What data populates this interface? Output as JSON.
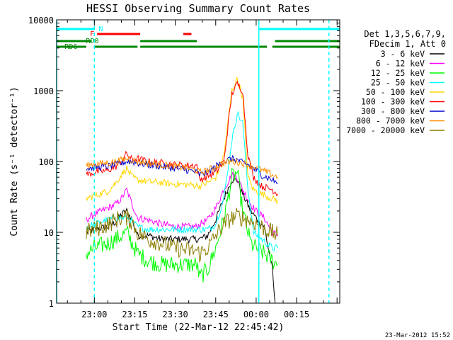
{
  "chart_data": {
    "type": "line",
    "title": "HESSI Observing Summary Count Rates",
    "xlabel": "Start Time (22-Mar-12 22:45:42)",
    "ylabel": "Count Rate (s⁻¹ detector⁻¹)",
    "yscale": "log",
    "ylim": [
      1,
      10000
    ],
    "xlim_minutes": [
      -14,
      91
    ],
    "yticks": [
      {
        "v": 1,
        "label": "1"
      },
      {
        "v": 10,
        "label": "10"
      },
      {
        "v": 100,
        "label": "100"
      },
      {
        "v": 1000,
        "label": "1000"
      },
      {
        "v": 10000,
        "label": "10000"
      }
    ],
    "xticks": [
      {
        "t": 0,
        "label": "23:00"
      },
      {
        "t": 15,
        "label": "23:15"
      },
      {
        "t": 30,
        "label": "23:30"
      },
      {
        "t": 45,
        "label": "23:45"
      },
      {
        "t": 60,
        "label": "00:00"
      },
      {
        "t": 75,
        "label": "00:15"
      }
    ],
    "legend_header": [
      "Det 1,3,5,6,7,9,",
      "FDecim 1, Att 0"
    ],
    "legend_placement": "right",
    "series": [
      {
        "name": "3 - 6 keV",
        "color": "#000000",
        "points": [
          [
            -3,
            10
          ],
          [
            0,
            11
          ],
          [
            5,
            12
          ],
          [
            8,
            14
          ],
          [
            10,
            18
          ],
          [
            12,
            20
          ],
          [
            14,
            15
          ],
          [
            16,
            9
          ],
          [
            20,
            9
          ],
          [
            25,
            8
          ],
          [
            30,
            8
          ],
          [
            35,
            8
          ],
          [
            38,
            8
          ],
          [
            39,
            8
          ],
          [
            42,
            9
          ],
          [
            45,
            15
          ],
          [
            48,
            30
          ],
          [
            51,
            55
          ],
          [
            53,
            55
          ],
          [
            55,
            35
          ],
          [
            58,
            20
          ],
          [
            60,
            16
          ],
          [
            63,
            12
          ],
          [
            66,
            3
          ],
          [
            67,
            1
          ]
        ]
      },
      {
        "name": "6 - 12 keV",
        "color": "#ff00ff",
        "points": [
          [
            -3,
            15
          ],
          [
            0,
            18
          ],
          [
            5,
            22
          ],
          [
            8,
            25
          ],
          [
            10,
            30
          ],
          [
            12,
            40
          ],
          [
            14,
            25
          ],
          [
            16,
            16
          ],
          [
            20,
            15
          ],
          [
            25,
            13
          ],
          [
            30,
            12
          ],
          [
            35,
            12
          ],
          [
            38,
            12
          ],
          [
            39,
            13
          ],
          [
            42,
            15
          ],
          [
            45,
            22
          ],
          [
            48,
            40
          ],
          [
            51,
            65
          ],
          [
            53,
            60
          ],
          [
            55,
            40
          ],
          [
            58,
            25
          ],
          [
            60,
            20
          ],
          [
            63,
            16
          ],
          [
            66,
            10
          ],
          [
            68,
            9
          ]
        ]
      },
      {
        "name": "12 - 25 keV",
        "color": "#00ff00",
        "points": [
          [
            -3,
            5
          ],
          [
            0,
            6
          ],
          [
            5,
            7
          ],
          [
            8,
            8
          ],
          [
            10,
            9
          ],
          [
            12,
            10
          ],
          [
            14,
            7
          ],
          [
            16,
            5
          ],
          [
            20,
            4
          ],
          [
            25,
            3.5
          ],
          [
            30,
            3.5
          ],
          [
            35,
            3.5
          ],
          [
            38,
            3.5
          ],
          [
            39,
            2.3
          ],
          [
            42,
            3
          ],
          [
            45,
            6
          ],
          [
            48,
            15
          ],
          [
            51,
            60
          ],
          [
            53,
            70
          ],
          [
            55,
            20
          ],
          [
            58,
            7
          ],
          [
            60,
            6
          ],
          [
            63,
            5
          ],
          [
            66,
            4
          ],
          [
            68,
            3.5
          ]
        ]
      },
      {
        "name": "25 - 50 keV",
        "color": "#00ffff",
        "points": [
          [
            -3,
            12
          ],
          [
            0,
            13
          ],
          [
            5,
            15
          ],
          [
            8,
            16
          ],
          [
            10,
            16
          ],
          [
            12,
            16
          ],
          [
            14,
            14
          ],
          [
            16,
            12
          ],
          [
            20,
            11
          ],
          [
            25,
            11
          ],
          [
            30,
            11
          ],
          [
            35,
            11
          ],
          [
            38,
            11
          ],
          [
            39,
            11
          ],
          [
            42,
            11
          ],
          [
            45,
            13
          ],
          [
            48,
            30
          ],
          [
            51,
            200
          ],
          [
            53,
            480
          ],
          [
            55,
            350
          ],
          [
            57,
            40
          ],
          [
            59,
            10
          ],
          [
            62,
            8
          ],
          [
            66,
            6
          ],
          [
            68,
            6
          ]
        ]
      },
      {
        "name": "50 - 100 keV",
        "color": "#ffd700",
        "points": [
          [
            -3,
            30
          ],
          [
            0,
            33
          ],
          [
            5,
            38
          ],
          [
            8,
            50
          ],
          [
            10,
            65
          ],
          [
            12,
            80
          ],
          [
            14,
            60
          ],
          [
            16,
            55
          ],
          [
            20,
            52
          ],
          [
            25,
            50
          ],
          [
            30,
            48
          ],
          [
            35,
            47
          ],
          [
            38,
            46
          ],
          [
            39,
            45
          ],
          [
            42,
            50
          ],
          [
            45,
            60
          ],
          [
            48,
            120
          ],
          [
            51,
            1000
          ],
          [
            53,
            1500
          ],
          [
            55,
            800
          ],
          [
            57,
            60
          ],
          [
            59,
            40
          ],
          [
            62,
            35
          ],
          [
            66,
            30
          ],
          [
            68,
            28
          ]
        ]
      },
      {
        "name": "100 - 300 keV",
        "color": "#ff0000",
        "points": [
          [
            -3,
            65
          ],
          [
            0,
            70
          ],
          [
            5,
            75
          ],
          [
            8,
            85
          ],
          [
            10,
            100
          ],
          [
            12,
            130
          ],
          [
            14,
            105
          ],
          [
            16,
            110
          ],
          [
            20,
            100
          ],
          [
            25,
            95
          ],
          [
            30,
            90
          ],
          [
            35,
            88
          ],
          [
            38,
            88
          ],
          [
            39,
            55
          ],
          [
            42,
            62
          ],
          [
            45,
            70
          ],
          [
            48,
            100
          ],
          [
            51,
            900
          ],
          [
            53,
            1250
          ],
          [
            55,
            1000
          ],
          [
            57,
            120
          ],
          [
            59,
            60
          ],
          [
            62,
            45
          ],
          [
            66,
            40
          ],
          [
            68,
            35
          ]
        ]
      },
      {
        "name": "300 - 800 keV",
        "color": "#0000cc",
        "points": [
          [
            -3,
            80
          ],
          [
            0,
            82
          ],
          [
            5,
            85
          ],
          [
            8,
            90
          ],
          [
            10,
            95
          ],
          [
            12,
            100
          ],
          [
            14,
            100
          ],
          [
            16,
            95
          ],
          [
            20,
            90
          ],
          [
            25,
            85
          ],
          [
            30,
            80
          ],
          [
            35,
            75
          ],
          [
            38,
            70
          ],
          [
            39,
            65
          ],
          [
            42,
            70
          ],
          [
            45,
            85
          ],
          [
            48,
            100
          ],
          [
            51,
            110
          ],
          [
            53,
            105
          ],
          [
            55,
            95
          ],
          [
            57,
            90
          ],
          [
            59,
            80
          ],
          [
            62,
            65
          ],
          [
            66,
            55
          ],
          [
            68,
            50
          ]
        ]
      },
      {
        "name": "800 - 7000 keV",
        "color": "#ff8c00",
        "points": [
          [
            -3,
            88
          ],
          [
            0,
            92
          ],
          [
            5,
            95
          ],
          [
            8,
            100
          ],
          [
            10,
            105
          ],
          [
            12,
            110
          ],
          [
            14,
            105
          ],
          [
            16,
            100
          ],
          [
            20,
            95
          ],
          [
            25,
            90
          ],
          [
            30,
            85
          ],
          [
            35,
            80
          ],
          [
            38,
            75
          ],
          [
            39,
            70
          ],
          [
            42,
            75
          ],
          [
            45,
            85
          ],
          [
            48,
            95
          ],
          [
            51,
            100
          ],
          [
            53,
            98
          ],
          [
            55,
            95
          ],
          [
            57,
            90
          ],
          [
            59,
            85
          ],
          [
            62,
            75
          ],
          [
            66,
            65
          ],
          [
            68,
            60
          ]
        ]
      },
      {
        "name": "7000 - 20000 keV",
        "color": "#8b7d00",
        "points": [
          [
            -3,
            10
          ],
          [
            0,
            11
          ],
          [
            5,
            13
          ],
          [
            8,
            15
          ],
          [
            10,
            16
          ],
          [
            12,
            16
          ],
          [
            14,
            14
          ],
          [
            16,
            10
          ],
          [
            20,
            8
          ],
          [
            25,
            7
          ],
          [
            30,
            6
          ],
          [
            35,
            5.5
          ],
          [
            38,
            5.5
          ],
          [
            39,
            5
          ],
          [
            42,
            6
          ],
          [
            45,
            9
          ],
          [
            48,
            13
          ],
          [
            51,
            16
          ],
          [
            53,
            17
          ],
          [
            55,
            16
          ],
          [
            57,
            15
          ],
          [
            59,
            14
          ],
          [
            62,
            12
          ],
          [
            66,
            10
          ],
          [
            68,
            9
          ]
        ]
      }
    ],
    "flags": [
      {
        "label": "N",
        "color": "#00ffff",
        "segments": [
          [
            -14,
            0
          ],
          [
            61,
            91
          ]
        ]
      },
      {
        "label": "F",
        "color": "#ff0000",
        "segments": [
          [
            1,
            17
          ],
          [
            33,
            36
          ]
        ]
      },
      {
        "label": "RD0",
        "color": "#008800",
        "segments": [
          [
            -14,
            -1
          ],
          [
            17,
            38
          ],
          [
            67,
            91
          ]
        ]
      },
      {
        "label": "RD6",
        "color": "#008800",
        "segments": [
          [
            -14,
            -3
          ],
          [
            0,
            16
          ],
          [
            17,
            38
          ],
          [
            38,
            64
          ],
          [
            66,
            91
          ]
        ]
      }
    ],
    "vlines": [
      {
        "t": -14,
        "color": "#00ffff",
        "dash": false
      },
      {
        "t": 0,
        "color": "#00ffff",
        "dash": true
      },
      {
        "t": 61,
        "color": "#00ffff",
        "dash": false
      },
      {
        "t": 87,
        "color": "#00ffff",
        "dash": true
      }
    ]
  },
  "footer": {
    "date_stamp": "23-Mar-2012 15:52"
  }
}
